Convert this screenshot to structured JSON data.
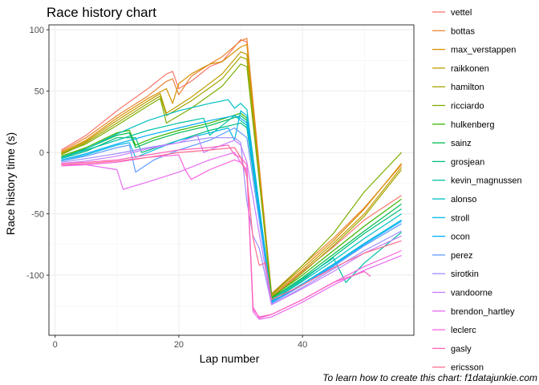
{
  "chart_data": {
    "type": "line",
    "title": "Race history chart",
    "xlabel": "Lap number",
    "ylabel": "Race history time (s)",
    "caption": "To learn how to create this chart: f1datajunkie.com",
    "xlim": [
      -1,
      58
    ],
    "ylim": [
      -149,
      104
    ],
    "xticks": [
      0,
      20,
      40
    ],
    "yticks": [
      -100,
      -50,
      0,
      50,
      100
    ],
    "grid": true,
    "legend_position": "right",
    "series": [
      {
        "name": "vettel",
        "color": "#F8766D",
        "x": [
          1,
          5,
          10,
          15,
          18,
          19,
          20,
          22,
          25,
          27,
          30,
          31,
          35,
          40,
          45,
          50,
          56
        ],
        "y": [
          2,
          14,
          34,
          52,
          64,
          66,
          52,
          58,
          70,
          74,
          92,
          90,
          -118,
          -97,
          -77,
          -55,
          -35
        ]
      },
      {
        "name": "bottas",
        "color": "#EA8331",
        "x": [
          1,
          5,
          10,
          15,
          18,
          19,
          20,
          22,
          25,
          27,
          30,
          31,
          35,
          40,
          45,
          50,
          56
        ],
        "y": [
          1,
          12,
          30,
          46,
          58,
          60,
          47,
          62,
          72,
          78,
          91,
          93,
          -115,
          -92,
          -70,
          -45,
          -10
        ]
      },
      {
        "name": "max_verstappen",
        "color": "#D89000",
        "x": [
          1,
          5,
          10,
          15,
          18,
          19,
          20,
          22,
          25,
          27,
          30,
          31,
          35,
          40,
          45,
          50,
          56
        ],
        "y": [
          0,
          10,
          28,
          44,
          52,
          40,
          56,
          64,
          72,
          74,
          86,
          88,
          -116,
          -94,
          -72,
          -46,
          -9
        ]
      },
      {
        "name": "raikkonen",
        "color": "#C09B00",
        "x": [
          1,
          5,
          10,
          15,
          17,
          18,
          22,
          27,
          30,
          31,
          35,
          40,
          45,
          50,
          56
        ],
        "y": [
          -1,
          9,
          26,
          42,
          48,
          32,
          45,
          64,
          82,
          80,
          -117,
          -96,
          -74,
          -50,
          -12
        ]
      },
      {
        "name": "hamilton",
        "color": "#A3A500",
        "x": [
          1,
          5,
          10,
          15,
          17,
          18,
          22,
          27,
          30,
          31,
          35,
          40,
          45,
          50,
          56
        ],
        "y": [
          -2,
          8,
          24,
          40,
          46,
          30,
          42,
          60,
          78,
          76,
          -119,
          -98,
          -76,
          -52,
          -14
        ]
      },
      {
        "name": "ricciardo",
        "color": "#7CAE00",
        "x": [
          1,
          5,
          10,
          15,
          17,
          18,
          22,
          27,
          30,
          31,
          35,
          40,
          45,
          50,
          56
        ],
        "y": [
          -1,
          7,
          22,
          38,
          44,
          24,
          36,
          54,
          72,
          70,
          -116,
          -92,
          -66,
          -32,
          0
        ]
      },
      {
        "name": "hulkenberg",
        "color": "#39B600",
        "x": [
          1,
          5,
          10,
          12,
          13,
          16,
          20,
          25,
          30,
          31,
          35,
          40,
          45,
          50,
          56
        ],
        "y": [
          -3,
          4,
          16,
          18,
          6,
          12,
          18,
          24,
          32,
          28,
          -118,
          -100,
          -80,
          -60,
          -38
        ]
      },
      {
        "name": "sainz",
        "color": "#00BB4E",
        "x": [
          1,
          5,
          10,
          12,
          13,
          16,
          20,
          25,
          30,
          31,
          35,
          40,
          45,
          50,
          56
        ],
        "y": [
          -4,
          3,
          14,
          16,
          4,
          10,
          16,
          22,
          30,
          26,
          -119,
          -102,
          -83,
          -64,
          -42
        ]
      },
      {
        "name": "grosjean",
        "color": "#00BF7D",
        "x": [
          1,
          5,
          10,
          13,
          14,
          20,
          25,
          30,
          31,
          35,
          40,
          45,
          50,
          56
        ],
        "y": [
          -5,
          1,
          12,
          12,
          0,
          10,
          18,
          24,
          20,
          -121,
          -104,
          -85,
          -66,
          -46
        ]
      },
      {
        "name": "kevin_magnussen",
        "color": "#00C1A3",
        "x": [
          1,
          5,
          10,
          15,
          20,
          24,
          25,
          29,
          30,
          31,
          35,
          40,
          45,
          47,
          50,
          56
        ],
        "y": [
          -4,
          2,
          10,
          18,
          24,
          28,
          14,
          30,
          26,
          22,
          -120,
          -103,
          -86,
          -106,
          -90,
          -65
        ]
      },
      {
        "name": "alonso",
        "color": "#00BFC4",
        "x": [
          1,
          5,
          10,
          15,
          20,
          25,
          28,
          29,
          30,
          31,
          35,
          40,
          45,
          50,
          56
        ],
        "y": [
          -5,
          3,
          15,
          26,
          34,
          40,
          43,
          36,
          40,
          35,
          -121,
          -105,
          -88,
          -70,
          -50
        ]
      },
      {
        "name": "stroll",
        "color": "#00B9E3",
        "x": [
          1,
          5,
          10,
          12,
          13,
          16,
          20,
          25,
          28,
          29,
          30,
          31,
          35,
          40,
          45,
          50,
          56
        ],
        "y": [
          -7,
          -2,
          6,
          8,
          -4,
          2,
          10,
          16,
          20,
          10,
          34,
          30,
          -122,
          -107,
          -91,
          -74,
          -55
        ]
      },
      {
        "name": "ocon",
        "color": "#00ADFA",
        "x": [
          1,
          5,
          10,
          15,
          20,
          25,
          29,
          30,
          31,
          35,
          40,
          45,
          50,
          56
        ],
        "y": [
          -6,
          -1,
          7,
          14,
          20,
          26,
          30,
          28,
          24,
          -122,
          -108,
          -92,
          -75,
          -56
        ]
      },
      {
        "name": "perez",
        "color": "#619CFF",
        "x": [
          1,
          5,
          10,
          12,
          13,
          16,
          20,
          25,
          29,
          30,
          31,
          35,
          40,
          45,
          50,
          56
        ],
        "y": [
          -7,
          -3,
          4,
          6,
          -16,
          -6,
          2,
          10,
          20,
          16,
          12,
          -123,
          -108,
          -93,
          -76,
          -58
        ]
      },
      {
        "name": "sirotkin",
        "color": "#9F8CFF",
        "x": [
          1,
          5,
          10,
          15,
          20,
          25,
          29,
          30,
          31,
          32,
          33,
          35,
          40,
          45,
          50,
          56
        ],
        "y": [
          -8,
          -5,
          -1,
          4,
          8,
          12,
          12,
          8,
          -40,
          -68,
          -78,
          -124,
          -110,
          -95,
          -80,
          -64
        ]
      },
      {
        "name": "vandoorne",
        "color": "#C77CFF",
        "x": [
          1,
          5,
          10,
          15,
          20,
          23,
          24,
          28,
          29,
          30,
          31,
          35,
          40,
          45,
          50,
          56
        ],
        "y": [
          -9,
          -7,
          -3,
          3,
          8,
          14,
          0,
          8,
          10,
          6,
          -8,
          -124,
          -111,
          -97,
          -82,
          -68
        ]
      },
      {
        "name": "brendon_hartley",
        "color": "#E76BF3",
        "x": [
          1,
          5,
          10,
          11,
          15,
          20,
          25,
          29,
          30,
          31,
          32,
          33,
          35,
          40,
          45,
          50,
          56
        ],
        "y": [
          -10,
          -10,
          -14,
          -30,
          -24,
          -16,
          -6,
          0,
          -8,
          -14,
          -130,
          -136,
          -134,
          -122,
          -108,
          -96,
          -84
        ]
      },
      {
        "name": "leclerc",
        "color": "#F763E0",
        "x": [
          1,
          5,
          10,
          15,
          20,
          21,
          22,
          25,
          29,
          30,
          31,
          32,
          33,
          35,
          40,
          45,
          50,
          56
        ],
        "y": [
          -11,
          -10,
          -8,
          -4,
          -2,
          -14,
          -22,
          -14,
          -6,
          -8,
          -16,
          -126,
          -135,
          -132,
          -120,
          -106,
          -93,
          -80
        ]
      },
      {
        "name": "gasly",
        "color": "#FF62BC",
        "x": [
          1,
          5,
          10,
          15,
          20,
          25,
          28,
          29,
          30,
          31,
          32,
          33,
          35,
          40,
          45,
          50,
          51
        ],
        "y": [
          -9,
          -8,
          -6,
          -2,
          2,
          4,
          6,
          -2,
          -4,
          -10,
          -128,
          -134,
          -132,
          -120,
          -106,
          -97,
          -101
        ]
      },
      {
        "name": "ericsson",
        "color": "#FF6C91",
        "x": [
          1,
          5,
          10,
          15,
          20,
          25,
          29,
          30,
          31,
          32,
          33,
          34,
          35,
          40,
          45,
          50,
          56
        ],
        "y": [
          -10,
          -9,
          -7,
          -4,
          0,
          2,
          4,
          -4,
          -20,
          -70,
          -92,
          -90,
          -120,
          -108,
          -94,
          -82,
          -72
        ]
      }
    ]
  }
}
